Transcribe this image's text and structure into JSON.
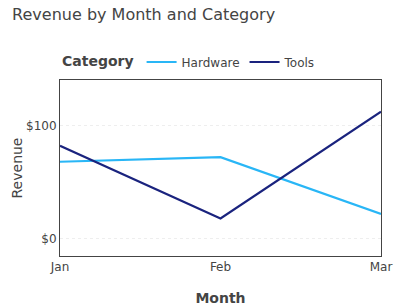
{
  "chart_data": {
    "type": "line",
    "title": "Revenue by Month and Category",
    "x_label": "Month",
    "y_label": "Revenue",
    "legend_title": "Category",
    "categories": [
      "Jan",
      "Feb",
      "Mar"
    ],
    "series": [
      {
        "name": "Hardware",
        "color": "#29B6F6",
        "values": [
          68,
          72,
          22
        ]
      },
      {
        "name": "Tools",
        "color": "#1A237E",
        "values": [
          82,
          18,
          112
        ]
      }
    ],
    "ylim": [
      -15,
      140
    ],
    "yticks": [
      {
        "value": 0,
        "label": "$0"
      },
      {
        "value": 100,
        "label": "$100"
      }
    ],
    "grid": true,
    "legend": "upper left"
  }
}
